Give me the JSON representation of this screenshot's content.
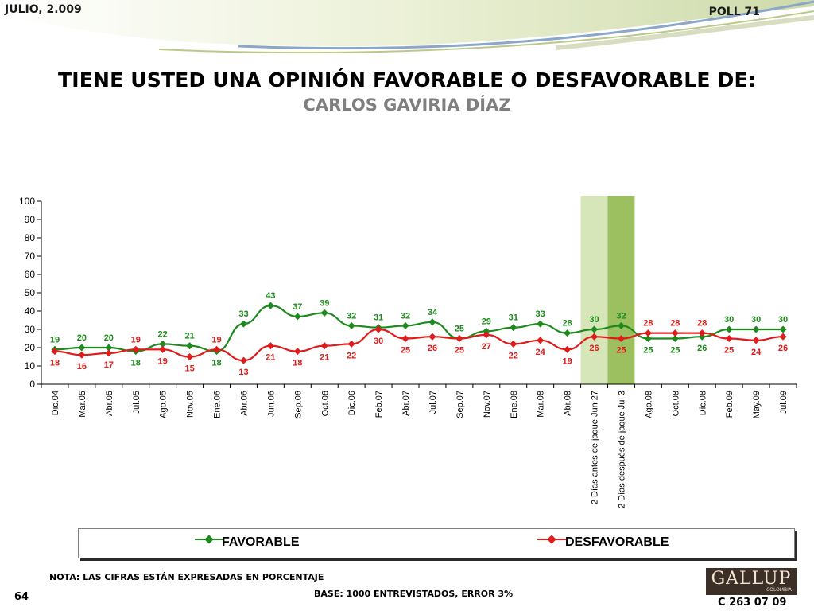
{
  "header": {
    "date": "JULIO, 2.009",
    "poll": "POLL 71"
  },
  "title": "TIENE USTED UNA OPINIÓN FAVORABLE O DESFAVORABLE DE:",
  "subtitle": "CARLOS GAVIRIA DÍAZ",
  "footer": {
    "nota": "NOTA: LAS CIFRAS ESTÁN EXPRESADAS EN PORCENTAJE",
    "base": "BASE: 1000 ENTREVISTADOS, ERROR 3%",
    "page": "64",
    "code": "C 263 07 09",
    "logo": "GALLUP",
    "logo_sub": "COLOMBIA"
  },
  "colors": {
    "favorable": "#1e8a1e",
    "desfavorable": "#e01b1b",
    "highlight_light": "#d6e6b8",
    "highlight_dark": "#9cc060"
  },
  "chart_data": {
    "type": "line",
    "categories": [
      "Dic.04",
      "Mar.05",
      "Abr.05",
      "Jul.05",
      "Ago.05",
      "Nov.05",
      "Ene.06",
      "Abr.06",
      "Jun.06",
      "Sep.06",
      "Oct.06",
      "Dic.06",
      "Feb.07",
      "Abr.07",
      "Jul.07",
      "Sep.07",
      "Nov.07",
      "Ene.08",
      "Mar.08",
      "Abr.08",
      "2 Días antes de jaque Jun 27",
      "2 Días después de jaque Jul 3",
      "Ago.08",
      "Oct.08",
      "Dic.08",
      "Feb.09",
      "May.09",
      "Jul.09"
    ],
    "series": [
      {
        "name": "FAVORABLE",
        "values": [
          19,
          20,
          20,
          18,
          22,
          21,
          18,
          33,
          43,
          37,
          39,
          32,
          31,
          32,
          34,
          25,
          29,
          31,
          33,
          28,
          30,
          32,
          25,
          25,
          26,
          30,
          30,
          30
        ]
      },
      {
        "name": "DESFAVORABLE",
        "values": [
          18,
          16,
          17,
          19,
          19,
          15,
          19,
          13,
          21,
          18,
          21,
          22,
          30,
          25,
          26,
          25,
          27,
          22,
          24,
          19,
          26,
          25,
          28,
          28,
          28,
          25,
          24,
          26
        ]
      }
    ],
    "highlight_categories": [
      "2 Días antes de jaque Jun 27",
      "2 Días después de jaque Jul 3"
    ],
    "yticks": [
      0,
      10,
      20,
      30,
      40,
      50,
      60,
      70,
      80,
      90,
      100
    ],
    "ylim": [
      0,
      100
    ],
    "legend_position": "bottom",
    "grid": false
  }
}
